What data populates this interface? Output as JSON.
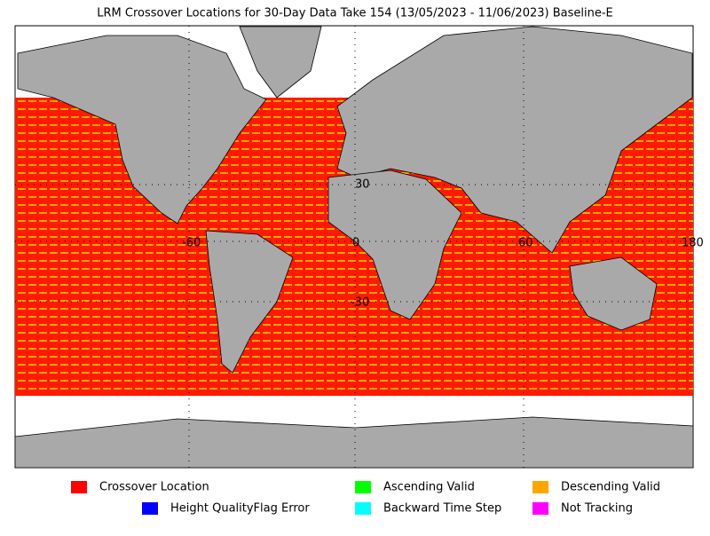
{
  "title": "LRM Crossover Locations for 30-Day Data Take 154 (13/05/2023 - 11/06/2023) Baseline-E",
  "map": {
    "grid_labels": [
      "30",
      "-60",
      "0",
      "60",
      "180",
      "-30"
    ]
  },
  "legend": [
    {
      "label": "Crossover Location",
      "color": "#ff0000"
    },
    {
      "label": "Ascending Valid",
      "color": "#00ff00"
    },
    {
      "label": "Descending Valid",
      "color": "#ffa500"
    },
    {
      "label": "Height QualityFlag Error",
      "color": "#0000ff"
    },
    {
      "label": "Backward Time Step",
      "color": "#00ffff"
    },
    {
      "label": "Not Tracking",
      "color": "#ff00ff"
    }
  ]
}
